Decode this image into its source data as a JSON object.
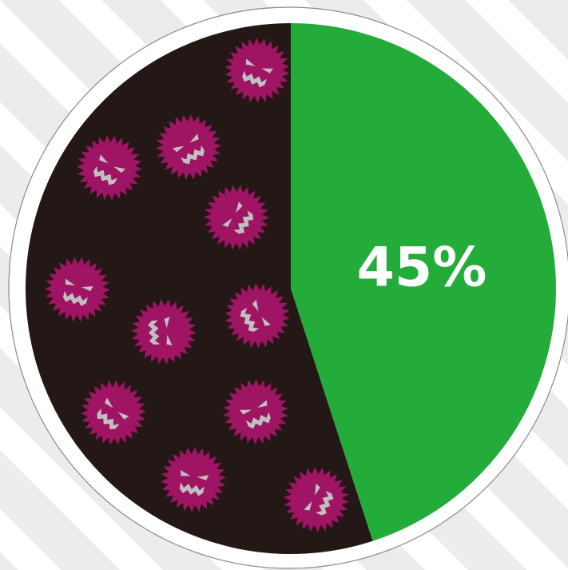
{
  "chart_data": {
    "type": "pie",
    "slices": [
      {
        "value": 45,
        "color": "#24ac3b"
      },
      {
        "value": 55,
        "color": "#231816"
      }
    ],
    "labels": [
      {
        "text": "45%",
        "slice": 0
      }
    ]
  },
  "colors": {
    "background_stripe_light": "#ffffff",
    "background_stripe_dark": "#ececec",
    "germ_body": "#a01464",
    "germ_face": "#c0c0c0",
    "label_text": "#ffffff",
    "rim": "#8a8a8a"
  },
  "decoration": {
    "germ_icon": "germ-icon",
    "germ_count": 11
  }
}
